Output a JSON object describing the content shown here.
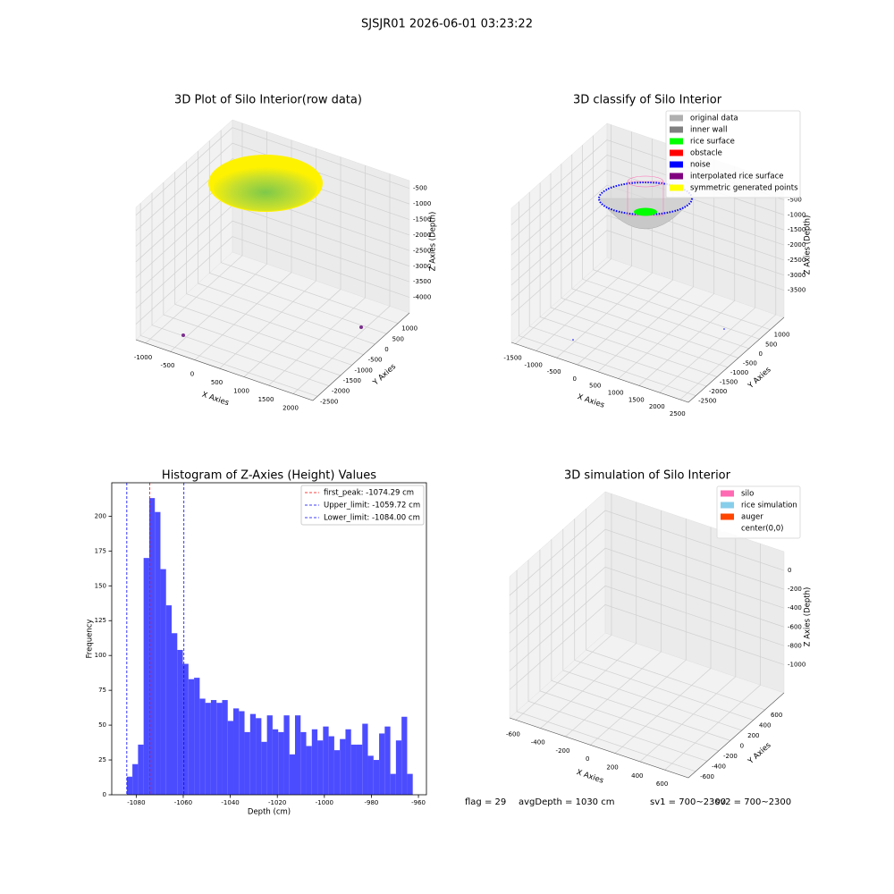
{
  "suptitle": "SJSJR01 2026-06-01 03:23:22",
  "footer": [
    "flag = 29",
    "avgDepth = 1030 cm",
    "sv1 = 700~2300",
    "sv2 = 700~2300"
  ],
  "chart_data": [
    {
      "type": "scatter3d",
      "title": "3D Plot of Silo Interior(row data)",
      "xlabel": "X Axies",
      "ylabel": "Y Axies",
      "zlabel": "Z Axies (Depth)",
      "xlim": [
        -1200,
        2400
      ],
      "ylim": [
        -2700,
        1500
      ],
      "zlim": [
        -4500,
        -250
      ],
      "xticks": [
        -1000,
        -500,
        0,
        500,
        1000,
        1500,
        2000
      ],
      "yticks": [
        -2500,
        -2000,
        -1500,
        -1000,
        -500,
        0,
        500,
        1000
      ],
      "zticks": [
        -4000,
        -3500,
        -3000,
        -2500,
        -2000,
        -1500,
        -1000,
        -500
      ]
    },
    {
      "type": "scatter3d",
      "title": "3D classify of Silo Interior",
      "xlabel": "X Axies",
      "ylabel": "Y Axies",
      "zlabel": "Z Axies (Depth)",
      "xlim": [
        -1600,
        2700
      ],
      "ylim": [
        -2850,
        1650
      ],
      "zlim": [
        -4400,
        50
      ],
      "xticks": [
        -1500,
        -1000,
        -500,
        0,
        500,
        1000,
        1500,
        2000,
        2500
      ],
      "yticks": [
        -2500,
        -2000,
        -1500,
        -1000,
        -500,
        0,
        500,
        1000
      ],
      "zticks": [
        -3500,
        -3000,
        -2500,
        -2000,
        -1500,
        -1000,
        -500
      ],
      "legend": [
        {
          "name": "original data",
          "color": "#b0b0b0"
        },
        {
          "name": "inner wall",
          "color": "#808080"
        },
        {
          "name": "rice surface",
          "color": "#00ff00"
        },
        {
          "name": "obstacle",
          "color": "#ff0000"
        },
        {
          "name": "noise",
          "color": "#0000ff"
        },
        {
          "name": "interpolated rice surface",
          "color": "#800080"
        },
        {
          "name": "symmetric generated points",
          "color": "#ffff00"
        }
      ]
    },
    {
      "type": "histogram",
      "title": "Histogram of Z-Axies (Height) Values",
      "xlabel": "Depth (cm)",
      "ylabel": "Frequency",
      "color": "#4c4cff",
      "xlim": [
        -1090.4,
        -956.6
      ],
      "ylim": [
        0,
        224
      ],
      "xticks": [
        -1080,
        -1060,
        -1040,
        -1020,
        -1000,
        -980,
        -960
      ],
      "yticks": [
        0,
        25,
        50,
        75,
        100,
        125,
        150,
        175,
        200
      ],
      "bins": [
        -1084.0,
        -1081.62,
        -1079.23,
        -1076.85,
        -1074.46,
        -1072.08,
        -1069.7,
        -1067.31,
        -1064.93,
        -1062.54,
        -1060.16,
        -1057.78,
        -1055.39,
        -1053.01,
        -1050.62,
        -1048.24,
        -1045.86,
        -1043.47,
        -1041.09,
        -1038.7,
        -1036.32,
        -1033.94,
        -1031.55,
        -1029.17,
        -1026.78,
        -1024.4,
        -1022.02,
        -1019.63,
        -1017.25,
        -1014.86,
        -1012.48,
        -1010.1,
        -1007.71,
        -1005.33,
        -1002.94,
        -1000.56,
        -998.18,
        -995.79,
        -993.41,
        -991.02,
        -988.64,
        -986.26,
        -983.87,
        -981.49,
        -979.1,
        -976.72,
        -974.34,
        -971.95,
        -969.57,
        -967.18,
        -964.8,
        -962.42
      ],
      "counts": [
        13,
        22,
        36,
        170,
        213,
        203,
        162,
        136,
        116,
        104,
        94,
        83,
        84,
        69,
        66,
        68,
        66,
        68,
        53,
        62,
        60,
        45,
        58,
        55,
        38,
        57,
        47,
        45,
        57,
        29,
        57,
        45,
        35,
        47,
        39,
        49,
        42,
        32,
        40,
        47,
        36,
        36,
        51,
        28,
        25,
        44,
        49,
        15,
        39,
        56,
        15
      ],
      "vlines": [
        {
          "name": "first_peak: -1074.29 cm",
          "value": -1074.29,
          "color": "#ff0000"
        },
        {
          "name": "Upper_limit: -1059.72 cm",
          "value": -1059.72,
          "color": "#0000ff"
        },
        {
          "name": "Lower_limit: -1084.00 cm",
          "value": -1084.0,
          "color": "#0000ff"
        }
      ]
    },
    {
      "type": "scatter3d",
      "title": "3D simulation of Silo Interior",
      "xlabel": "X Axies",
      "ylabel": "Y Axies",
      "zlabel": "Z Axies (Depth)",
      "xlim": [
        -650,
        790
      ],
      "ylim": [
        -725,
        930
      ],
      "zlim": [
        -1300,
        200
      ],
      "xticks": [
        -600,
        -400,
        -200,
        0,
        200,
        400,
        600
      ],
      "yticks": [
        -600,
        -400,
        -200,
        0,
        200,
        400,
        600
      ],
      "zticks": [
        -1000,
        -800,
        -600,
        -400,
        -200,
        0
      ],
      "legend": [
        {
          "name": "silo",
          "color": "#ff69b4"
        },
        {
          "name": "rice simulation",
          "color": "#87ceeb"
        },
        {
          "name": "auger",
          "color": "#ff4500"
        },
        {
          "name": "center(0,0)",
          "color": "#ffffff"
        }
      ]
    }
  ]
}
